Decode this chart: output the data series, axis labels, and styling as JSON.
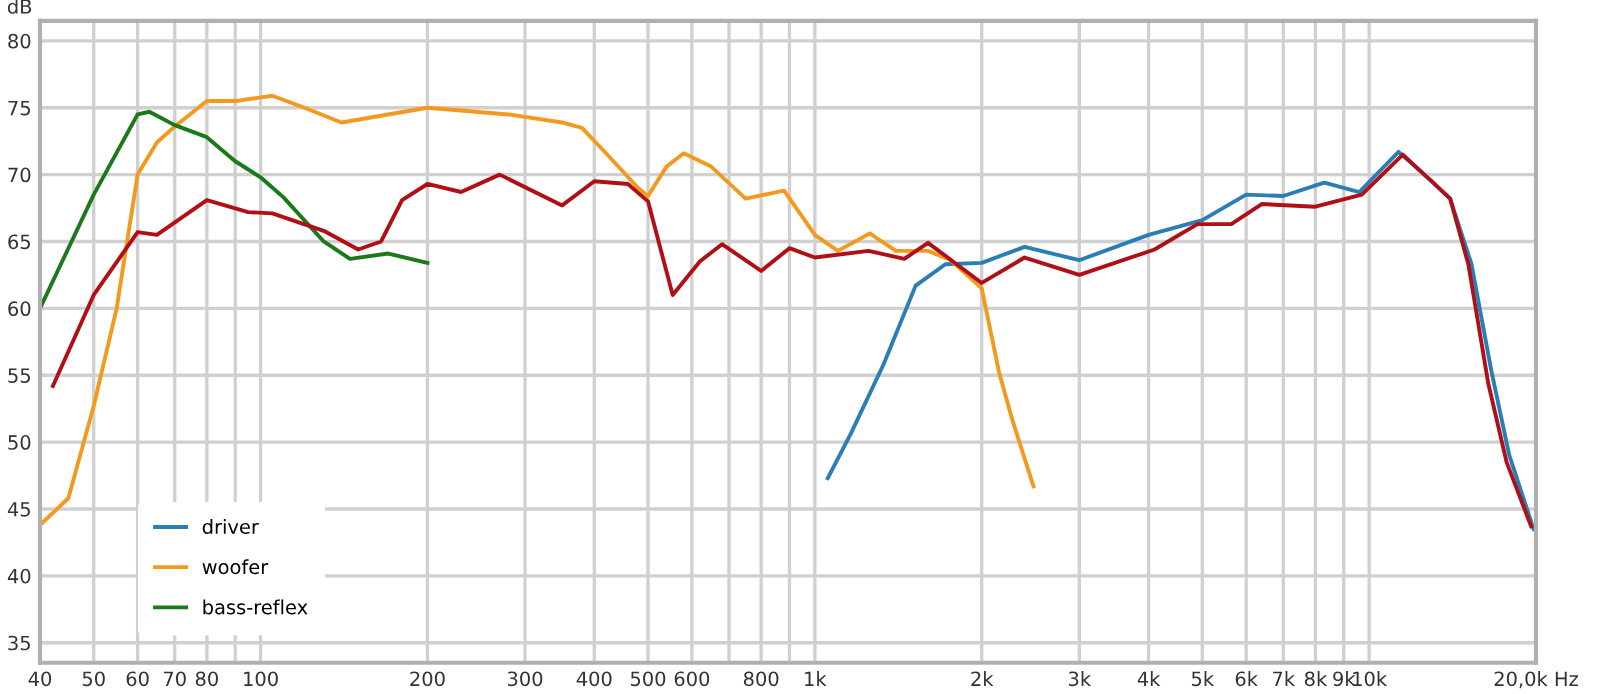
{
  "chart_data": {
    "type": "line",
    "ylabel": "dB",
    "log": "x",
    "grid": true,
    "legend": "bottom left",
    "line_style": "solid",
    "marker": "none",
    "xlim": [
      40,
      20000
    ],
    "ylim": [
      33.5,
      81.5
    ],
    "xticks": [
      40,
      50,
      60,
      70,
      80,
      {
        "value": 90,
        "label": null
      },
      100,
      200,
      300,
      400,
      500,
      600,
      {
        "value": 700,
        "label": null
      },
      800,
      {
        "value": 900,
        "label": null
      },
      {
        "value": 1000,
        "label": "1k"
      },
      {
        "value": 2000,
        "label": "2k"
      },
      {
        "value": 3000,
        "label": "3k"
      },
      {
        "value": 4000,
        "label": "4k"
      },
      {
        "value": 5000,
        "label": "5k"
      },
      {
        "value": 6000,
        "label": "6k"
      },
      {
        "value": 7000,
        "label": "7k"
      },
      {
        "value": 8000,
        "label": "8k"
      },
      {
        "value": 9000,
        "label": "9k"
      },
      {
        "value": 10000,
        "label": "10k"
      },
      {
        "value": 20000,
        "label": "20,0k Hz"
      }
    ],
    "yticks": [
      35,
      40,
      45,
      50,
      55,
      60,
      65,
      70,
      75,
      80
    ],
    "series": [
      {
        "name": "driver",
        "color": "#2a7db5",
        "x": [
          1055,
          1160,
          1330,
          1520,
          1720,
          2000,
          2390,
          3000,
          4000,
          5000,
          6000,
          7000,
          8300,
          9600,
          11300,
          12970,
          14000,
          15300,
          16600,
          17900,
          19800
        ],
        "values": [
          47.3,
          50.6,
          55.8,
          61.7,
          63.3,
          63.4,
          64.6,
          63.6,
          65.5,
          66.6,
          68.5,
          68.4,
          69.4,
          68.7,
          71.7,
          69.5,
          68.2,
          63.3,
          55.4,
          49.0,
          43.5
        ]
      },
      {
        "name": "woofer",
        "color": "#f39a1e",
        "x": [
          40,
          45,
          50,
          55,
          60,
          65,
          70,
          80,
          90,
          105,
          120,
          140,
          200,
          280,
          350,
          380,
          420,
          480,
          500,
          540,
          580,
          650,
          750,
          880,
          1000,
          1100,
          1256,
          1400,
          1600,
          1760,
          2000,
          2150,
          2270,
          2480
        ],
        "values": [
          43.8,
          45.8,
          52.7,
          60.0,
          70.0,
          72.4,
          73.6,
          75.5,
          75.5,
          75.9,
          75.0,
          73.9,
          75.0,
          74.5,
          73.9,
          73.5,
          71.6,
          69.0,
          68.4,
          70.6,
          71.6,
          70.6,
          68.2,
          68.8,
          65.5,
          64.3,
          65.6,
          64.3,
          64.3,
          63.6,
          61.5,
          55.2,
          51.7,
          46.7
        ]
      },
      {
        "name": "bass-reflex",
        "color": "#1a7a1a",
        "x": [
          40,
          50,
          60,
          63,
          70,
          80,
          90,
          100,
          110,
          130,
          145,
          170,
          200
        ],
        "values": [
          60.0,
          68.5,
          74.5,
          74.7,
          73.7,
          72.8,
          71.0,
          69.8,
          68.3,
          65.0,
          63.7,
          64.1,
          63.4
        ]
      },
      {
        "color": "#b01015",
        "x": [
          42.2,
          50,
          60,
          65,
          80,
          95,
          105,
          130,
          150,
          165,
          180,
          200,
          230,
          270,
          350,
          400,
          460,
          500,
          554,
          620,
          680,
          800,
          900,
          1000,
          1250,
          1450,
          1600,
          2000,
          2390,
          3000,
          4100,
          4900,
          5640,
          6400,
          8000,
          9700,
          11500,
          13200,
          14000,
          15100,
          16400,
          17700,
          19600
        ],
        "values": [
          54.2,
          61.0,
          65.7,
          65.5,
          68.1,
          67.2,
          67.1,
          65.8,
          64.4,
          65.0,
          68.1,
          69.3,
          68.7,
          70.0,
          67.7,
          69.5,
          69.3,
          68.0,
          61.0,
          63.5,
          64.8,
          62.8,
          64.5,
          63.8,
          64.3,
          63.7,
          64.9,
          61.9,
          63.8,
          62.5,
          64.4,
          66.3,
          66.3,
          67.8,
          67.6,
          68.5,
          71.5,
          69.2,
          68.2,
          63.3,
          54.4,
          48.5,
          43.7
        ]
      }
    ]
  }
}
